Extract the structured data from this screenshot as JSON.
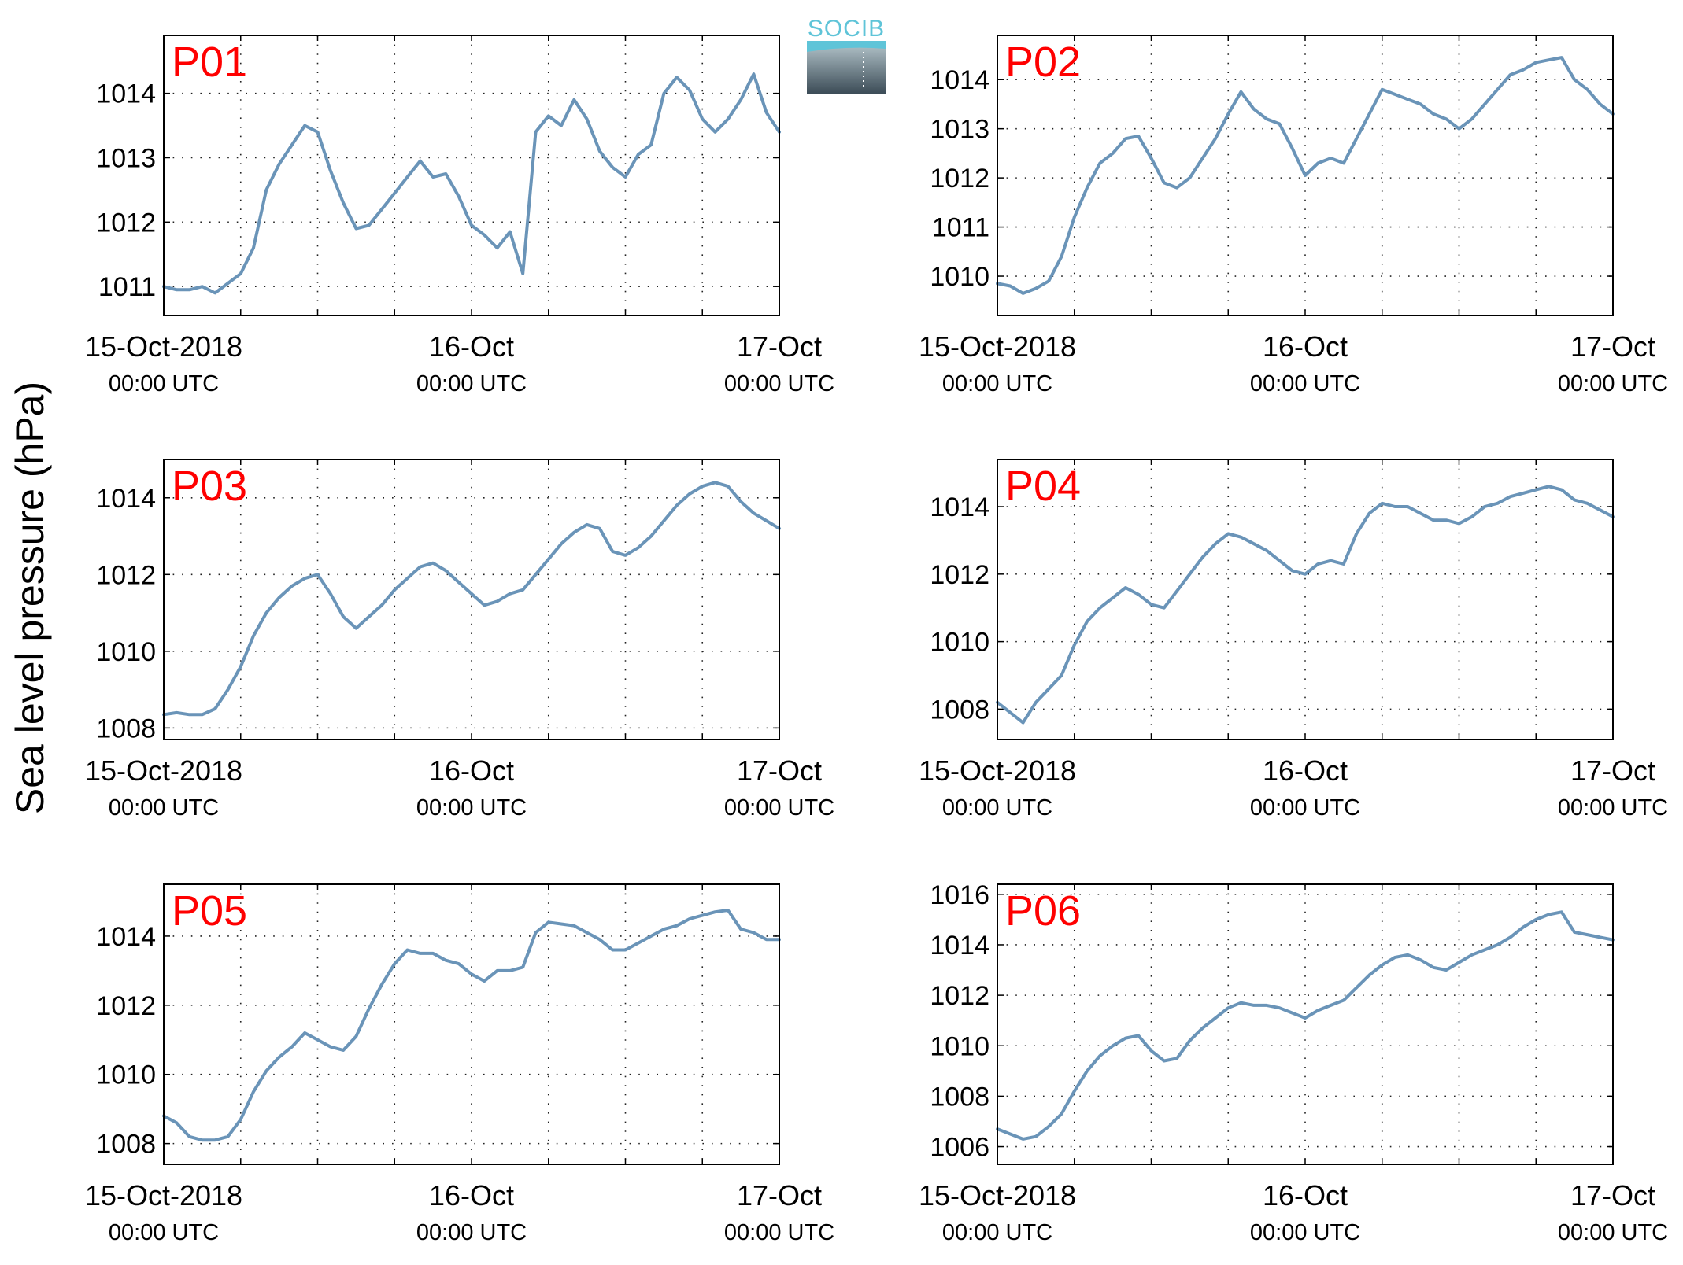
{
  "figure": {
    "ylabel": "Sea level pressure (hPa)",
    "logo_text": "SOCIB",
    "line_color": "#6a94b8",
    "panel_label_color": "#ff0000"
  },
  "chart_data": [
    {
      "type": "line",
      "label": "P01",
      "x_ticks": [
        {
          "main": "15-Oct-2018",
          "sub": "00:00 UTC"
        },
        {
          "main": "16-Oct",
          "sub": "00:00 UTC"
        },
        {
          "main": "17-Oct",
          "sub": "00:00 UTC"
        }
      ],
      "x_unit": "hours since 15-Oct-2018 00:00 UTC",
      "xlim": [
        0,
        48
      ],
      "grid": true,
      "ylim": [
        1010.55,
        1014.9
      ],
      "yticks": [
        1011,
        1012,
        1013,
        1014
      ],
      "x": [
        0,
        1,
        2,
        3,
        4,
        5,
        6,
        7,
        8,
        9,
        10,
        11,
        12,
        13,
        14,
        15,
        16,
        17,
        18,
        19,
        20,
        21,
        22,
        23,
        24,
        25,
        26,
        27,
        28,
        29,
        30,
        31,
        32,
        33,
        34,
        35,
        36,
        37,
        38,
        39,
        40,
        41,
        42,
        43,
        44,
        45,
        46,
        47,
        48
      ],
      "y": [
        1011.0,
        1010.95,
        1010.95,
        1011.0,
        1010.9,
        1011.05,
        1011.2,
        1011.6,
        1012.5,
        1012.9,
        1013.2,
        1013.5,
        1013.4,
        1012.8,
        1012.3,
        1011.9,
        1011.95,
        1012.2,
        1012.45,
        1012.7,
        1012.95,
        1012.7,
        1012.75,
        1012.4,
        1011.95,
        1011.8,
        1011.6,
        1011.85,
        1011.2,
        1013.4,
        1013.65,
        1013.5,
        1013.9,
        1013.6,
        1013.1,
        1012.85,
        1012.7,
        1013.05,
        1013.2,
        1014.0,
        1014.25,
        1014.05,
        1013.6,
        1013.4,
        1013.6,
        1013.9,
        1014.3,
        1013.7,
        1013.4
      ]
    },
    {
      "type": "line",
      "label": "P02",
      "x_ticks": [
        {
          "main": "15-Oct-2018",
          "sub": "00:00 UTC"
        },
        {
          "main": "16-Oct",
          "sub": "00:00 UTC"
        },
        {
          "main": "17-Oct",
          "sub": "00:00 UTC"
        }
      ],
      "x_unit": "hours since 15-Oct-2018 00:00 UTC",
      "xlim": [
        0,
        48
      ],
      "grid": true,
      "ylim": [
        1009.2,
        1014.9
      ],
      "yticks": [
        1010,
        1011,
        1012,
        1013,
        1014
      ],
      "x": [
        0,
        1,
        2,
        3,
        4,
        5,
        6,
        7,
        8,
        9,
        10,
        11,
        12,
        13,
        14,
        15,
        16,
        17,
        18,
        19,
        20,
        21,
        22,
        23,
        24,
        25,
        26,
        27,
        28,
        29,
        30,
        31,
        32,
        33,
        34,
        35,
        36,
        37,
        38,
        39,
        40,
        41,
        42,
        43,
        44,
        45,
        46,
        47,
        48
      ],
      "y": [
        1009.85,
        1009.8,
        1009.65,
        1009.75,
        1009.9,
        1010.4,
        1011.2,
        1011.8,
        1012.3,
        1012.5,
        1012.8,
        1012.85,
        1012.4,
        1011.9,
        1011.8,
        1012.0,
        1012.4,
        1012.8,
        1013.3,
        1013.75,
        1013.4,
        1013.2,
        1013.1,
        1012.6,
        1012.05,
        1012.3,
        1012.4,
        1012.3,
        1012.8,
        1013.3,
        1013.8,
        1013.7,
        1013.6,
        1013.5,
        1013.3,
        1013.2,
        1013.0,
        1013.2,
        1013.5,
        1013.8,
        1014.1,
        1014.2,
        1014.35,
        1014.4,
        1014.45,
        1014.0,
        1013.8,
        1013.5,
        1013.3
      ]
    },
    {
      "type": "line",
      "label": "P03",
      "x_ticks": [
        {
          "main": "15-Oct-2018",
          "sub": "00:00 UTC"
        },
        {
          "main": "16-Oct",
          "sub": "00:00 UTC"
        },
        {
          "main": "17-Oct",
          "sub": "00:00 UTC"
        }
      ],
      "x_unit": "hours since 15-Oct-2018 00:00 UTC",
      "xlim": [
        0,
        48
      ],
      "grid": true,
      "ylim": [
        1007.7,
        1015.0
      ],
      "yticks": [
        1008,
        1010,
        1012,
        1014
      ],
      "x": [
        0,
        1,
        2,
        3,
        4,
        5,
        6,
        7,
        8,
        9,
        10,
        11,
        12,
        13,
        14,
        15,
        16,
        17,
        18,
        19,
        20,
        21,
        22,
        23,
        24,
        25,
        26,
        27,
        28,
        29,
        30,
        31,
        32,
        33,
        34,
        35,
        36,
        37,
        38,
        39,
        40,
        41,
        42,
        43,
        44,
        45,
        46,
        47,
        48
      ],
      "y": [
        1008.35,
        1008.4,
        1008.35,
        1008.35,
        1008.5,
        1009.0,
        1009.6,
        1010.4,
        1011.0,
        1011.4,
        1011.7,
        1011.9,
        1012.0,
        1011.5,
        1010.9,
        1010.6,
        1010.9,
        1011.2,
        1011.6,
        1011.9,
        1012.2,
        1012.3,
        1012.1,
        1011.8,
        1011.5,
        1011.2,
        1011.3,
        1011.5,
        1011.6,
        1012.0,
        1012.4,
        1012.8,
        1013.1,
        1013.3,
        1013.2,
        1012.6,
        1012.5,
        1012.7,
        1013.0,
        1013.4,
        1013.8,
        1014.1,
        1014.3,
        1014.4,
        1014.3,
        1013.9,
        1013.6,
        1013.4,
        1013.2
      ]
    },
    {
      "type": "line",
      "label": "P04",
      "x_ticks": [
        {
          "main": "15-Oct-2018",
          "sub": "00:00 UTC"
        },
        {
          "main": "16-Oct",
          "sub": "00:00 UTC"
        },
        {
          "main": "17-Oct",
          "sub": "00:00 UTC"
        }
      ],
      "x_unit": "hours since 15-Oct-2018 00:00 UTC",
      "xlim": [
        0,
        48
      ],
      "grid": true,
      "ylim": [
        1007.1,
        1015.4
      ],
      "yticks": [
        1008,
        1010,
        1012,
        1014
      ],
      "x": [
        0,
        1,
        2,
        3,
        4,
        5,
        6,
        7,
        8,
        9,
        10,
        11,
        12,
        13,
        14,
        15,
        16,
        17,
        18,
        19,
        20,
        21,
        22,
        23,
        24,
        25,
        26,
        27,
        28,
        29,
        30,
        31,
        32,
        33,
        34,
        35,
        36,
        37,
        38,
        39,
        40,
        41,
        42,
        43,
        44,
        45,
        46,
        47,
        48
      ],
      "y": [
        1008.2,
        1007.9,
        1007.6,
        1008.2,
        1008.6,
        1009.0,
        1009.9,
        1010.6,
        1011.0,
        1011.3,
        1011.6,
        1011.4,
        1011.1,
        1011.0,
        1011.5,
        1012.0,
        1012.5,
        1012.9,
        1013.2,
        1013.1,
        1012.9,
        1012.7,
        1012.4,
        1012.1,
        1012.0,
        1012.3,
        1012.4,
        1012.3,
        1013.2,
        1013.8,
        1014.1,
        1014.0,
        1014.0,
        1013.8,
        1013.6,
        1013.6,
        1013.5,
        1013.7,
        1014.0,
        1014.1,
        1014.3,
        1014.4,
        1014.5,
        1014.6,
        1014.5,
        1014.2,
        1014.1,
        1013.9,
        1013.7
      ]
    },
    {
      "type": "line",
      "label": "P05",
      "x_ticks": [
        {
          "main": "15-Oct-2018",
          "sub": "00:00 UTC"
        },
        {
          "main": "16-Oct",
          "sub": "00:00 UTC"
        },
        {
          "main": "17-Oct",
          "sub": "00:00 UTC"
        }
      ],
      "x_unit": "hours since 15-Oct-2018 00:00 UTC",
      "xlim": [
        0,
        48
      ],
      "grid": true,
      "ylim": [
        1007.4,
        1015.5
      ],
      "yticks": [
        1008,
        1010,
        1012,
        1014
      ],
      "x": [
        0,
        1,
        2,
        3,
        4,
        5,
        6,
        7,
        8,
        9,
        10,
        11,
        12,
        13,
        14,
        15,
        16,
        17,
        18,
        19,
        20,
        21,
        22,
        23,
        24,
        25,
        26,
        27,
        28,
        29,
        30,
        31,
        32,
        33,
        34,
        35,
        36,
        37,
        38,
        39,
        40,
        41,
        42,
        43,
        44,
        45,
        46,
        47,
        48
      ],
      "y": [
        1008.8,
        1008.6,
        1008.2,
        1008.1,
        1008.1,
        1008.2,
        1008.7,
        1009.5,
        1010.1,
        1010.5,
        1010.8,
        1011.2,
        1011.0,
        1010.8,
        1010.7,
        1011.1,
        1011.9,
        1012.6,
        1013.2,
        1013.6,
        1013.5,
        1013.5,
        1013.3,
        1013.2,
        1012.9,
        1012.7,
        1013.0,
        1013.0,
        1013.1,
        1014.1,
        1014.4,
        1014.35,
        1014.3,
        1014.1,
        1013.9,
        1013.6,
        1013.6,
        1013.8,
        1014.0,
        1014.2,
        1014.3,
        1014.5,
        1014.6,
        1014.7,
        1014.75,
        1014.2,
        1014.1,
        1013.9,
        1013.9
      ]
    },
    {
      "type": "line",
      "label": "P06",
      "x_ticks": [
        {
          "main": "15-Oct-2018",
          "sub": "00:00 UTC"
        },
        {
          "main": "16-Oct",
          "sub": "00:00 UTC"
        },
        {
          "main": "17-Oct",
          "sub": "00:00 UTC"
        }
      ],
      "x_unit": "hours since 15-Oct-2018 00:00 UTC",
      "xlim": [
        0,
        48
      ],
      "grid": true,
      "ylim": [
        1005.3,
        1016.4
      ],
      "yticks": [
        1006,
        1008,
        1010,
        1012,
        1014,
        1016
      ],
      "x": [
        0,
        1,
        2,
        3,
        4,
        5,
        6,
        7,
        8,
        9,
        10,
        11,
        12,
        13,
        14,
        15,
        16,
        17,
        18,
        19,
        20,
        21,
        22,
        23,
        24,
        25,
        26,
        27,
        28,
        29,
        30,
        31,
        32,
        33,
        34,
        35,
        36,
        37,
        38,
        39,
        40,
        41,
        42,
        43,
        44,
        45,
        46,
        47,
        48
      ],
      "y": [
        1006.7,
        1006.5,
        1006.3,
        1006.4,
        1006.8,
        1007.3,
        1008.2,
        1009.0,
        1009.6,
        1010.0,
        1010.3,
        1010.4,
        1009.8,
        1009.4,
        1009.5,
        1010.2,
        1010.7,
        1011.1,
        1011.5,
        1011.7,
        1011.6,
        1011.6,
        1011.5,
        1011.3,
        1011.1,
        1011.4,
        1011.6,
        1011.8,
        1012.3,
        1012.8,
        1013.2,
        1013.5,
        1013.6,
        1013.4,
        1013.1,
        1013.0,
        1013.3,
        1013.6,
        1013.8,
        1014.0,
        1014.3,
        1014.7,
        1015.0,
        1015.2,
        1015.3,
        1014.5,
        1014.4,
        1014.3,
        1014.2
      ]
    }
  ]
}
